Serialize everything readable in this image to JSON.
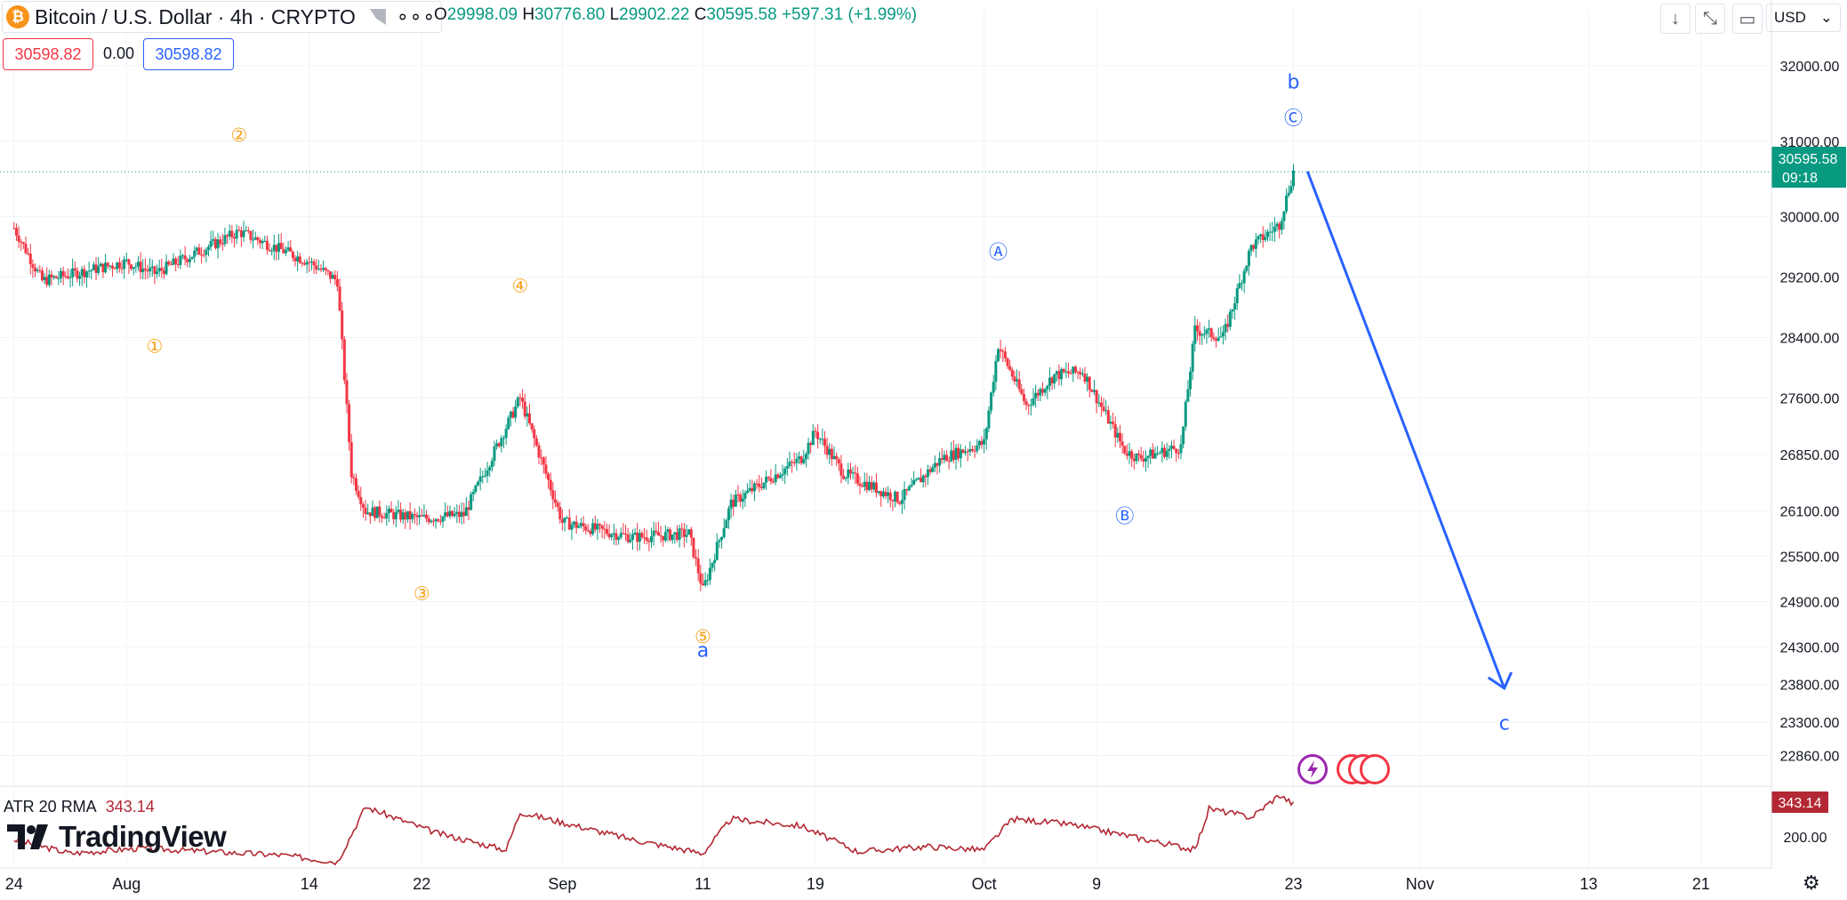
{
  "header": {
    "symbol_icon": "bitcoin-icon",
    "symbol_title": "Bitcoin / U.S. Dollar · 4h · CRYPTO",
    "more_icon": "more-dots-icon",
    "ohlc": {
      "o_key": "O",
      "o_val": "29998.09",
      "h_key": "H",
      "h_val": "30776.80",
      "l_key": "L",
      "l_val": "29902.22",
      "c_key": "C",
      "c_val": "30595.58",
      "change": "+597.31 (+1.99%)"
    },
    "sell_price": "30598.82",
    "spread": "0.00",
    "buy_price": "30598.82"
  },
  "toolbar": {
    "currency": "USD",
    "icons": [
      "arrow-down-icon",
      "collapse-icon",
      "fullscreen-icon"
    ]
  },
  "indicator": {
    "name": "ATR 20 RMA",
    "value": "343.14",
    "axis_label": "343.14",
    "axis_tick": "200.00"
  },
  "branding": {
    "name": "TradingView"
  },
  "colors": {
    "up": "#089981",
    "down": "#f23645",
    "wave_orange": "#f7a21b",
    "wave_blue": "#2962ff",
    "atr_line": "#b22833",
    "price_tag": "#089981"
  },
  "chart_data": {
    "type": "candlestick",
    "symbol": "Bitcoin / U.S. Dollar",
    "interval": "4h",
    "x_ticks": [
      "24",
      "Aug",
      "14",
      "22",
      "Sep",
      "11",
      "19",
      "Oct",
      "9",
      "23",
      "Nov",
      "13",
      "21"
    ],
    "y_ticks": [
      32000,
      31000,
      30000,
      29200,
      28400,
      27600,
      26850,
      26100,
      25500,
      24900,
      24300,
      23800,
      23300,
      22860
    ],
    "y_tick_labels": [
      "32000.00",
      "31000.00",
      "30000.00",
      "29200.00",
      "28400.00",
      "27600.00",
      "26850.00",
      "26100.00",
      "25500.00",
      "24900.00",
      "24300.00",
      "23800.00",
      "23300.00",
      "22860.00"
    ],
    "last_price": 30595.58,
    "last_price_label": "30595.58",
    "countdown": "09:18",
    "price_anchors": [
      {
        "date": "2023-07-24",
        "close": 29850
      },
      {
        "date": "2023-07-26",
        "close": 29150
      },
      {
        "date": "2023-08-01",
        "close": 29400
      },
      {
        "date": "2023-08-03",
        "close": 29250
      },
      {
        "date": "2023-08-09",
        "close": 29800
      },
      {
        "date": "2023-08-14",
        "close": 29400
      },
      {
        "date": "2023-08-16",
        "close": 29150
      },
      {
        "date": "2023-08-17",
        "close": 26600
      },
      {
        "date": "2023-08-18",
        "close": 26100
      },
      {
        "date": "2023-08-22",
        "close": 26000
      },
      {
        "date": "2023-08-25",
        "close": 26050
      },
      {
        "date": "2023-08-29",
        "close": 27600
      },
      {
        "date": "2023-09-01",
        "close": 25950
      },
      {
        "date": "2023-09-06",
        "close": 25750
      },
      {
        "date": "2023-09-10",
        "close": 25800
      },
      {
        "date": "2023-09-11",
        "close": 25050
      },
      {
        "date": "2023-09-13",
        "close": 26200
      },
      {
        "date": "2023-09-18",
        "close": 26800
      },
      {
        "date": "2023-09-19",
        "close": 27150
      },
      {
        "date": "2023-09-21",
        "close": 26600
      },
      {
        "date": "2023-09-25",
        "close": 26250
      },
      {
        "date": "2023-09-28",
        "close": 26800
      },
      {
        "date": "2023-10-01",
        "close": 27000
      },
      {
        "date": "2023-10-02",
        "close": 28300
      },
      {
        "date": "2023-10-04",
        "close": 27500
      },
      {
        "date": "2023-10-06",
        "close": 27900
      },
      {
        "date": "2023-10-08",
        "close": 27950
      },
      {
        "date": "2023-10-11",
        "close": 26900
      },
      {
        "date": "2023-10-12",
        "close": 26800
      },
      {
        "date": "2023-10-15",
        "close": 26950
      },
      {
        "date": "2023-10-16",
        "close": 28500
      },
      {
        "date": "2023-10-18",
        "close": 28400
      },
      {
        "date": "2023-10-20",
        "close": 29600
      },
      {
        "date": "2023-10-22",
        "close": 29900
      },
      {
        "date": "2023-10-23",
        "close": 30595.58
      }
    ],
    "atr_anchors": [
      {
        "date": "2023-07-24",
        "value": 240
      },
      {
        "date": "2023-07-28",
        "value": 200
      },
      {
        "date": "2023-08-02",
        "value": 215
      },
      {
        "date": "2023-08-12",
        "value": 195
      },
      {
        "date": "2023-08-16",
        "value": 175
      },
      {
        "date": "2023-08-18",
        "value": 335
      },
      {
        "date": "2023-08-23",
        "value": 260
      },
      {
        "date": "2023-08-28",
        "value": 210
      },
      {
        "date": "2023-08-29",
        "value": 320
      },
      {
        "date": "2023-09-01",
        "value": 290
      },
      {
        "date": "2023-09-06",
        "value": 240
      },
      {
        "date": "2023-09-11",
        "value": 200
      },
      {
        "date": "2023-09-13",
        "value": 300
      },
      {
        "date": "2023-09-18",
        "value": 280
      },
      {
        "date": "2023-09-22",
        "value": 205
      },
      {
        "date": "2023-09-27",
        "value": 220
      },
      {
        "date": "2023-10-01",
        "value": 210
      },
      {
        "date": "2023-10-03",
        "value": 300
      },
      {
        "date": "2023-10-07",
        "value": 285
      },
      {
        "date": "2023-10-12",
        "value": 245
      },
      {
        "date": "2023-10-16",
        "value": 210
      },
      {
        "date": "2023-10-17",
        "value": 330
      },
      {
        "date": "2023-10-20",
        "value": 305
      },
      {
        "date": "2023-10-22",
        "value": 370
      },
      {
        "date": "2023-10-23",
        "value": 343.14
      }
    ],
    "atr_ylim": [
      160,
      380
    ],
    "ylim": [
      22500,
      32400
    ],
    "x_range": [
      "2023-07-23",
      "2023-11-26"
    ],
    "wave_labels": [
      {
        "text": "①",
        "date": "2023-08-03",
        "price": 28200,
        "color": "orange"
      },
      {
        "text": "②",
        "date": "2023-08-09",
        "price": 31000,
        "color": "orange"
      },
      {
        "text": "③",
        "date": "2023-08-22",
        "price": 24920,
        "color": "orange"
      },
      {
        "text": "④",
        "date": "2023-08-29",
        "price": 29000,
        "color": "orange"
      },
      {
        "text": "⑤",
        "date": "2023-09-11",
        "price": 24350,
        "color": "orange"
      },
      {
        "text": "a",
        "date": "2023-09-11",
        "price": 24170,
        "color": "blue"
      },
      {
        "text": "Ⓐ",
        "date": "2023-10-02",
        "price": 29450,
        "color": "blue"
      },
      {
        "text": "Ⓑ",
        "date": "2023-10-11",
        "price": 25950,
        "color": "blue"
      },
      {
        "text": "Ⓒ",
        "date": "2023-10-23",
        "price": 31220,
        "color": "blue"
      },
      {
        "text": "b",
        "date": "2023-10-23",
        "price": 31700,
        "color": "blue"
      },
      {
        "text": "c",
        "date": "2023-11-07",
        "price": 23200,
        "color": "blue"
      }
    ],
    "projection": {
      "from": {
        "date": "2023-10-24",
        "price": 30600
      },
      "to": {
        "date": "2023-11-07",
        "price": 23750
      }
    }
  }
}
